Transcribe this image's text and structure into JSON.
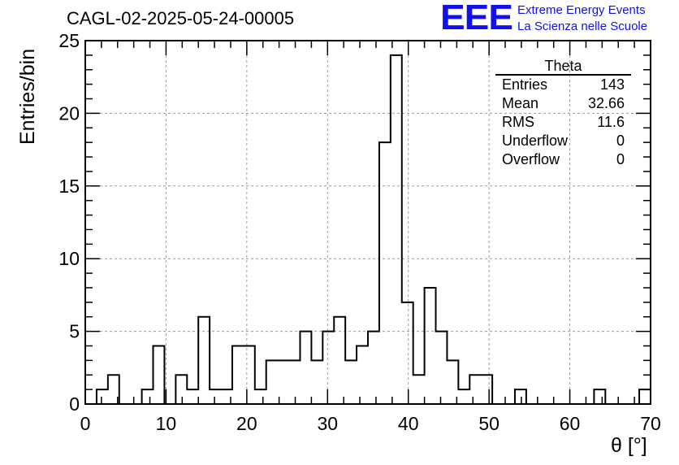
{
  "title": "CAGL-02-2025-05-24-00005",
  "logo": {
    "mark": "EEE",
    "line1": "Extreme Energy Events",
    "line2": "La Scienza nelle Scuole",
    "color": "#1010ee"
  },
  "stats": {
    "title": "Theta",
    "rows": [
      {
        "label": "Entries",
        "value": "143"
      },
      {
        "label": "Mean",
        "value": "32.66"
      },
      {
        "label": "RMS",
        "value": "11.6"
      },
      {
        "label": "Underflow",
        "value": "0"
      },
      {
        "label": "Overflow",
        "value": "0"
      }
    ]
  },
  "chart_data": {
    "type": "bar",
    "style": "step-histogram",
    "xlabel": "θ [°]",
    "ylabel": "Entries/bin",
    "xlim": [
      0,
      70
    ],
    "ylim": [
      0,
      25
    ],
    "bin_width": 1.4,
    "x_ticks": [
      0,
      10,
      20,
      30,
      40,
      50,
      60,
      70
    ],
    "y_ticks": [
      0,
      5,
      10,
      15,
      20,
      25
    ],
    "grid": true,
    "values": [
      0,
      1,
      2,
      0,
      0,
      1,
      4,
      0,
      2,
      1,
      6,
      1,
      1,
      4,
      4,
      1,
      3,
      3,
      3,
      5,
      3,
      5,
      6,
      3,
      4,
      5,
      18,
      24,
      7,
      2,
      8,
      5,
      3,
      1,
      2,
      2,
      0,
      0,
      1,
      0,
      0,
      0,
      0,
      0,
      0,
      1,
      0,
      0,
      0,
      1
    ],
    "line_color": "#000000",
    "grid_color": "#9a9a9a"
  }
}
